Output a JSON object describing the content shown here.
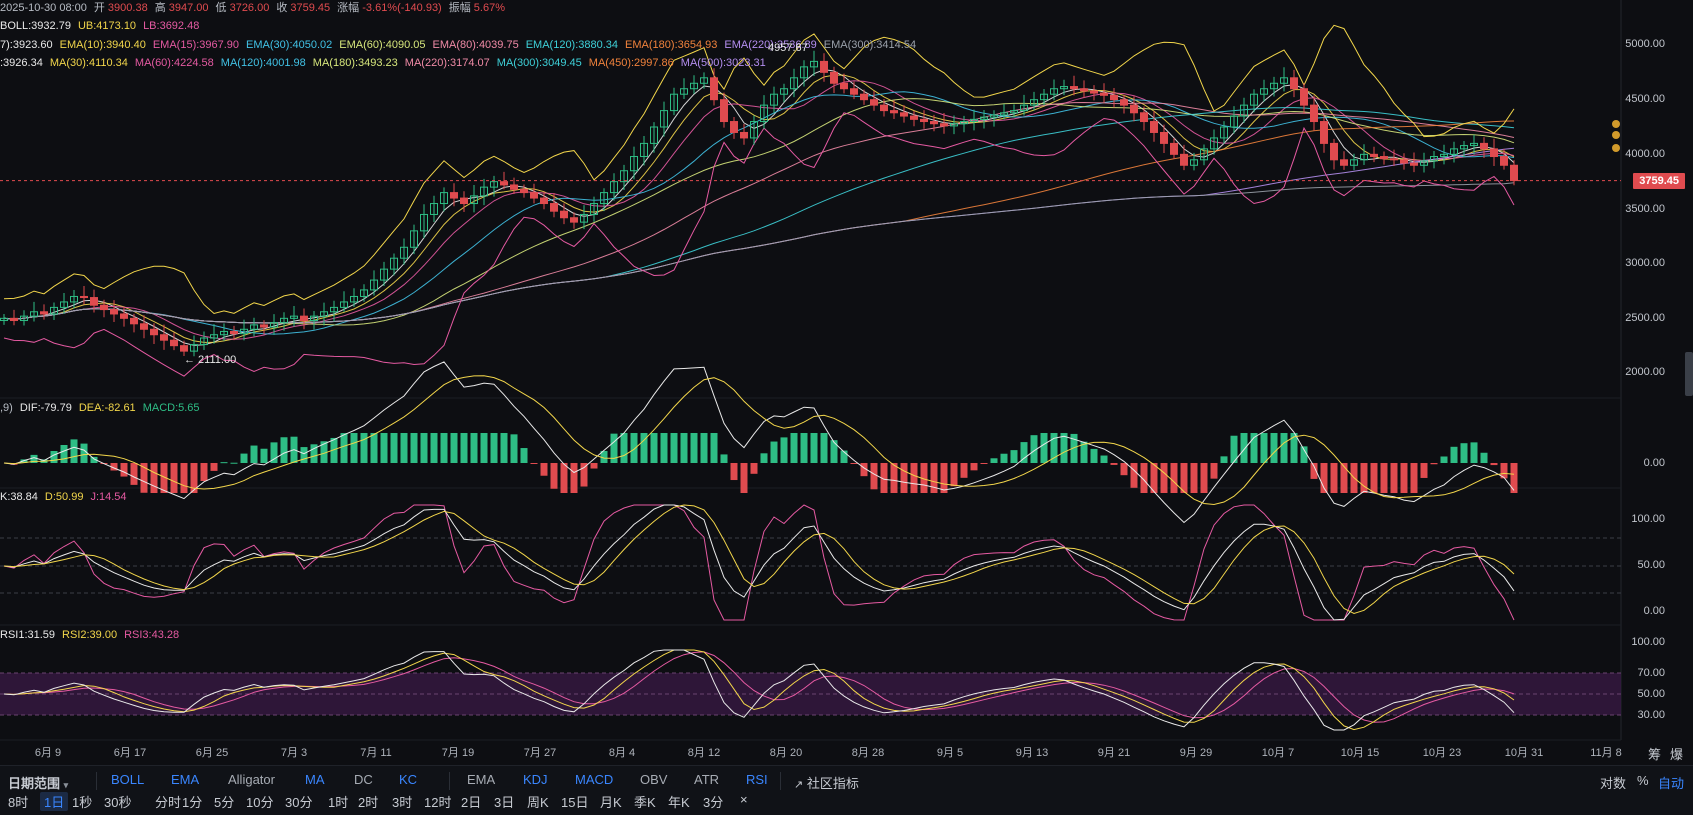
{
  "header": {
    "date_prefix": "2025-10-30 08:00",
    "open_label": "开",
    "open": "3900.38",
    "high_label": "高",
    "high": "3947.00",
    "low_label": "低",
    "low": "3726.00",
    "close_label": "收",
    "close": "3759.45",
    "change_label": "涨幅",
    "change": "-3.61%(-140.93)",
    "amp_label": "振幅",
    "amp": "5.67%"
  },
  "boll": {
    "mid": "BOLL:3932.79",
    "ub": "UB:4173.10",
    "lb": "LB:3692.48"
  },
  "ema_line": [
    {
      "text": "7):3923.60",
      "color": "#e9e9e9"
    },
    {
      "text": "EMA(10):3940.40",
      "color": "#f2d64b"
    },
    {
      "text": "EMA(15):3967.90",
      "color": "#e55aa2"
    },
    {
      "text": "EMA(30):4050.02",
      "color": "#41c2e6"
    },
    {
      "text": "EMA(60):4090.05",
      "color": "#d7e77c"
    },
    {
      "text": "EMA(80):4039.75",
      "color": "#f08aa6"
    },
    {
      "text": "EMA(120):3880.34",
      "color": "#3ed0d8"
    },
    {
      "text": "EMA(180):3654.93",
      "color": "#f0823c"
    },
    {
      "text": "EMA(220):3536.89",
      "color": "#b48ef0"
    },
    {
      "text": "EMA(300):3414.54",
      "color": "#9aa0aa"
    }
  ],
  "ma_line": [
    {
      "text": ":3926.34",
      "color": "#e9e9e9"
    },
    {
      "text": "MA(30):4110.34",
      "color": "#f2d64b"
    },
    {
      "text": "MA(60):4224.58",
      "color": "#e55aa2"
    },
    {
      "text": "MA(120):4001.98",
      "color": "#41c2e6"
    },
    {
      "text": "MA(180):3493.23",
      "color": "#d7e77c"
    },
    {
      "text": "MA(220):3174.07",
      "color": "#f08aa6"
    },
    {
      "text": "MA(300):3049.45",
      "color": "#3ed0d8"
    },
    {
      "text": "MA(450):2997.86",
      "color": "#f0823c"
    },
    {
      "text": "MA(500):3023.31",
      "color": "#b48ef0"
    }
  ],
  "annotations": {
    "high_mark": "4957.67",
    "low_mark": "← 2111.00"
  },
  "price_axis": [
    "5000.00",
    "4500.00",
    "4000.00",
    "3500.00",
    "3000.00",
    "2500.00",
    "2000.00"
  ],
  "current_price": "3759.45",
  "macd": {
    "prefix": ",9)",
    "dif": "DIF:-79.79",
    "dea": "DEA:-82.61",
    "macd": "MACD:5.65",
    "axis": "0.00"
  },
  "kdj": {
    "k": "K:38.84",
    "d": "D:50.99",
    "j": "J:14.54",
    "axis": [
      "100.00",
      "50.00",
      "0.00"
    ]
  },
  "rsi": {
    "r1": "RSI1:31.59",
    "r2": "RSI2:39.00",
    "r3": "RSI3:43.28",
    "axis": [
      "100.00",
      "70.00",
      "50.00",
      "30.00"
    ]
  },
  "dates": [
    "6月 9",
    "6月 17",
    "6月 25",
    "7月 3",
    "7月 11",
    "7月 19",
    "7月 27",
    "8月 4",
    "8月 12",
    "8月 20",
    "8月 28",
    "9月 5",
    "9月 13",
    "9月 21",
    "9月 29",
    "10月 7",
    "10月 15",
    "10月 23",
    "10月 31",
    "11月 8"
  ],
  "corner": {
    "chip": "筹",
    "burst": "爆"
  },
  "indicator_bar": {
    "date_range": "日期范围",
    "main": [
      "BOLL",
      "EMA",
      "Alligator",
      "MA",
      "DC",
      "KC"
    ],
    "main_active": [
      "BOLL",
      "EMA",
      "MA",
      "KC"
    ],
    "sub": [
      "EMA",
      "KDJ",
      "MACD",
      "OBV",
      "ATR",
      "RSI"
    ],
    "sub_active": [
      "KDJ",
      "MACD",
      "RSI"
    ],
    "community": "社区指标",
    "right": [
      "对数",
      "%",
      "自动"
    ]
  },
  "interval_bar": [
    "8时",
    "1日",
    "1秒",
    "30秒",
    "分时",
    "1分",
    "5分",
    "10分",
    "30分",
    "1时",
    "2时",
    "3时",
    "12时",
    "2日",
    "3日",
    "周K",
    "15日",
    "月K",
    "季K",
    "年K",
    "3分",
    "×"
  ],
  "interval_active": "1日",
  "colors": {
    "up": "#2ebd85",
    "down": "#e04b4f",
    "bg": "#0d0e12"
  },
  "chart_data": {
    "type": "candlestick",
    "ylim": [
      1900,
      5100
    ],
    "candles_close": [
      2500,
      2480,
      2520,
      2560,
      2540,
      2600,
      2650,
      2700,
      2690,
      2620,
      2580,
      2540,
      2500,
      2450,
      2400,
      2350,
      2300,
      2250,
      2200,
      2260,
      2320,
      2350,
      2380,
      2360,
      2400,
      2440,
      2420,
      2460,
      2500,
      2520,
      2480,
      2520,
      2560,
      2600,
      2650,
      2700,
      2760,
      2850,
      2950,
      3050,
      3150,
      3300,
      3450,
      3550,
      3650,
      3600,
      3550,
      3620,
      3700,
      3750,
      3720,
      3680,
      3650,
      3600,
      3550,
      3480,
      3420,
      3380,
      3450,
      3550,
      3650,
      3750,
      3850,
      3980,
      4100,
      4250,
      4400,
      4550,
      4600,
      4650,
      4700,
      4500,
      4300,
      4200,
      4150,
      4300,
      4450,
      4550,
      4600,
      4700,
      4800,
      4850,
      4750,
      4650,
      4600,
      4550,
      4500,
      4450,
      4400,
      4380,
      4350,
      4320,
      4300,
      4280,
      4260,
      4280,
      4300,
      4320,
      4340,
      4360,
      4380,
      4400,
      4450,
      4500,
      4550,
      4600,
      4620,
      4600,
      4580,
      4560,
      4540,
      4500,
      4450,
      4380,
      4300,
      4200,
      4100,
      4000,
      3900,
      3950,
      4050,
      4150,
      4250,
      4350,
      4450,
      4550,
      4600,
      4650,
      4700,
      4600,
      4450,
      4300,
      4100,
      3950,
      3900,
      3950,
      4000,
      3980,
      3960,
      3950,
      3920,
      3900,
      3940,
      3980,
      4000,
      4050,
      4080,
      4100,
      4050,
      3980,
      3900,
      3760
    ],
    "last_close": 3759.45
  }
}
